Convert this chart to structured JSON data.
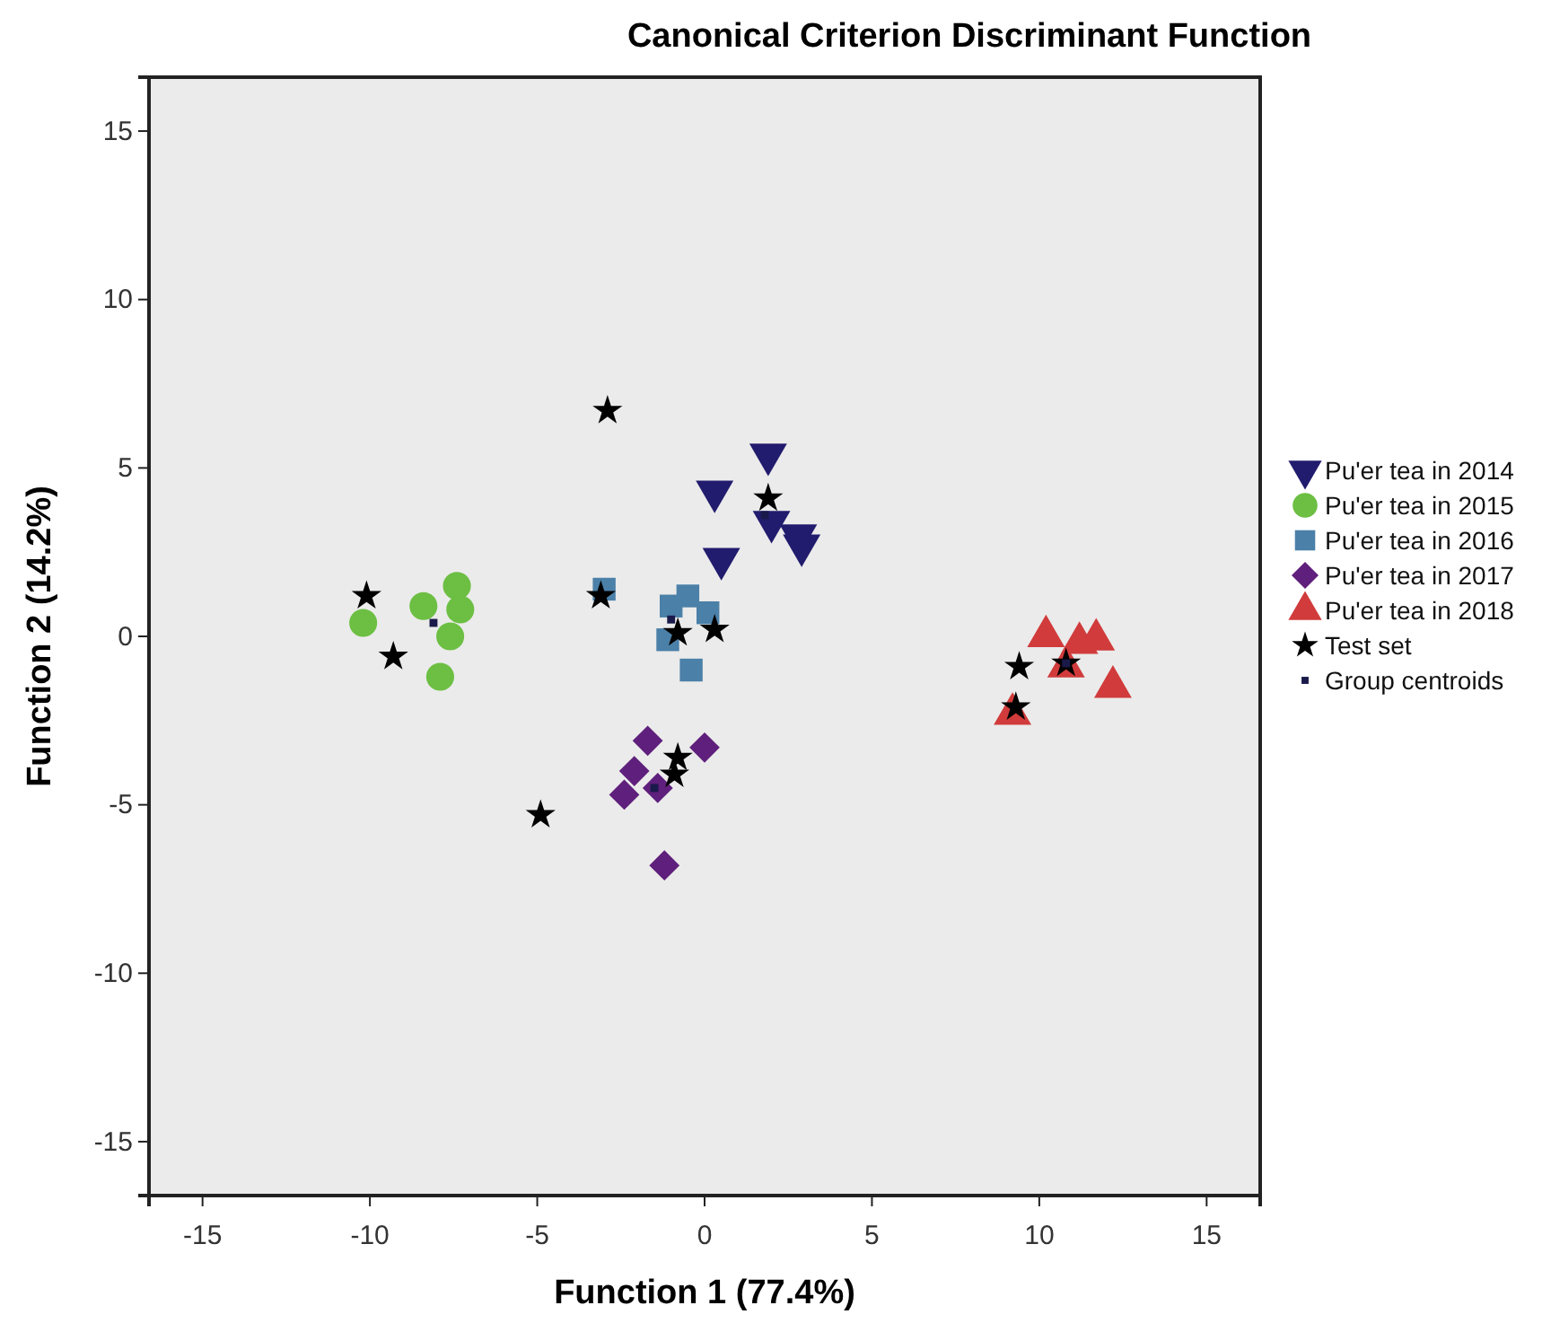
{
  "chart_data": {
    "type": "scatter",
    "title": "Canonical Criterion Discriminant Function",
    "xlabel": "Function 1 (77.4%)",
    "ylabel": "Function 2 (14.2%)",
    "xlim": [
      -16.6,
      16.6
    ],
    "ylim": [
      -16.6,
      16.6
    ],
    "xticks": [
      -15,
      -10,
      -5,
      0,
      5,
      10,
      15
    ],
    "yticks": [
      -15,
      -10,
      -5,
      0,
      5,
      10,
      15
    ],
    "grid": false,
    "legend": "right",
    "series": [
      {
        "name": "Pu'er tea in 2014",
        "color": "#221c6e",
        "marker": "triangle-down",
        "x": [
          1.9,
          0.3,
          0.5,
          2.0,
          2.8,
          2.9
        ],
        "values": [
          5.4,
          4.3,
          2.3,
          3.4,
          3.0,
          2.7
        ]
      },
      {
        "name": "Pu'er tea in 2015",
        "color": "#6cbf42",
        "marker": "circle",
        "x": [
          -7.4,
          -8.4,
          -7.3,
          -7.6,
          -10.2,
          -7.9
        ],
        "values": [
          1.5,
          0.9,
          0.8,
          0.0,
          0.4,
          -1.2
        ]
      },
      {
        "name": "Pu'er tea in 2016",
        "color": "#4b80a8",
        "marker": "square",
        "x": [
          -3.0,
          -0.5,
          -1.0,
          0.1,
          -1.1,
          -0.4
        ],
        "values": [
          1.4,
          1.2,
          0.9,
          0.7,
          -0.1,
          -1.0
        ]
      },
      {
        "name": "Pu'er tea in 2017",
        "color": "#5f1f7c",
        "marker": "diamond",
        "x": [
          -1.7,
          0.0,
          -2.1,
          -2.4,
          -1.4,
          -1.2
        ],
        "values": [
          -3.1,
          -3.3,
          -4.0,
          -4.7,
          -4.5,
          -6.8
        ]
      },
      {
        "name": "Pu'er tea in 2018",
        "color": "#d13b3b",
        "marker": "triangle",
        "x": [
          10.2,
          11.2,
          11.7,
          10.8,
          12.2,
          9.2
        ],
        "values": [
          0.0,
          -0.2,
          -0.1,
          -0.9,
          -1.5,
          -2.3
        ]
      },
      {
        "name": "Test set",
        "color": "#000000",
        "marker": "star",
        "x": [
          -10.1,
          -9.3,
          -3.1,
          -2.9,
          -0.8,
          0.3,
          1.9,
          -0.8,
          -0.9,
          -4.9,
          9.4,
          10.8,
          9.3
        ],
        "values": [
          1.2,
          -0.6,
          1.2,
          6.7,
          0.1,
          0.2,
          4.1,
          -3.6,
          -4.1,
          -5.3,
          -0.9,
          -0.8,
          -2.1
        ]
      },
      {
        "name": "Group centroids",
        "color": "#1a1a4a",
        "marker": "square",
        "x": [
          1.8,
          -8.1,
          -1.0,
          -1.5,
          10.8
        ],
        "values": [
          3.6,
          0.4,
          0.5,
          -4.5,
          -0.8
        ]
      }
    ]
  }
}
